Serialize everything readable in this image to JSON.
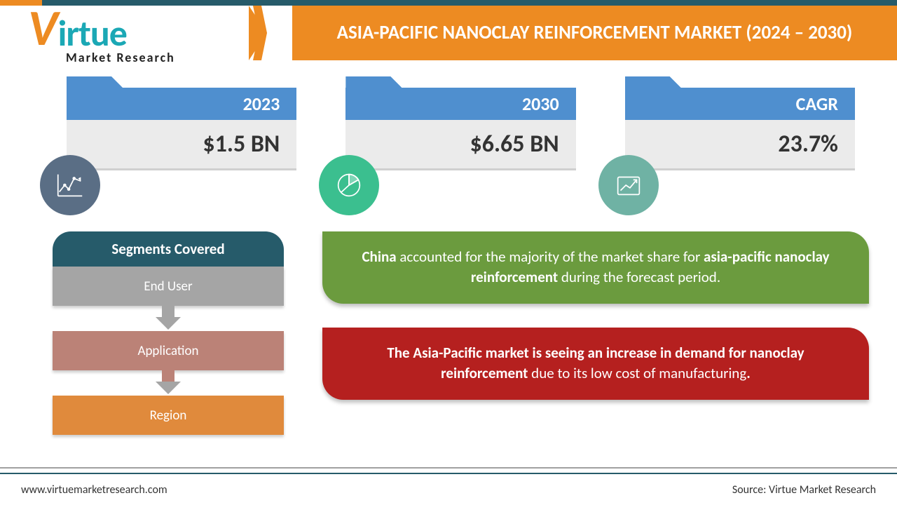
{
  "logo": {
    "brand_v": "V",
    "brand_rest": "irtue",
    "tagline": "Market Research"
  },
  "title": "ASIA-PACIFIC NANOCLAY REINFORCEMENT MARKET (2024 – 2030)",
  "stats": [
    {
      "label": "2023",
      "value": "$1.5 BN",
      "icon": "line-chart-icon",
      "icon_bg": "#5a6e85"
    },
    {
      "label": "2030",
      "value": "$6.65 BN",
      "icon": "pie-chart-icon",
      "icon_bg": "#3bbf8f"
    },
    {
      "label": "CAGR",
      "value": "23.7%",
      "icon": "growth-chart-icon",
      "icon_bg": "#6fb2a4"
    }
  ],
  "header_color": "#4f8fcf",
  "value_bg": "#ebebeb",
  "segments": {
    "header": "Segments Covered",
    "header_bg": "#265b6a",
    "items": [
      {
        "label": "End User",
        "bg": "#a5a5a5"
      },
      {
        "label": "Application",
        "bg": "#bb8277"
      },
      {
        "label": "Region",
        "bg": "#e08a3c"
      }
    ],
    "arrow_color": "#a5a5a5"
  },
  "insights": [
    {
      "bg": "#6b9b3e",
      "html_parts": [
        {
          "text": "China",
          "bold": true
        },
        {
          "text": " accounted for the majority of the market share for ",
          "bold": false
        },
        {
          "text": "asia-pacific nanoclay reinforcement",
          "bold": true
        },
        {
          "text": " during the forecast period.",
          "bold": false
        }
      ]
    },
    {
      "bg": "#b5201f",
      "html_parts": [
        {
          "text": "The Asia-Pacific market is seeing an increase in demand for nanoclay reinforcement",
          "bold": true
        },
        {
          "text": " due to its low cost of manufacturing",
          "bold": false
        },
        {
          "text": ".",
          "bold": true
        }
      ]
    }
  ],
  "footer": {
    "left": "www.virtuemarketresearch.com",
    "right": "Source: Virtue Market Research"
  },
  "colors": {
    "orange": "#ed8b22",
    "teal_dark": "#265b6a",
    "teal_logo": "#1ba8b5"
  }
}
